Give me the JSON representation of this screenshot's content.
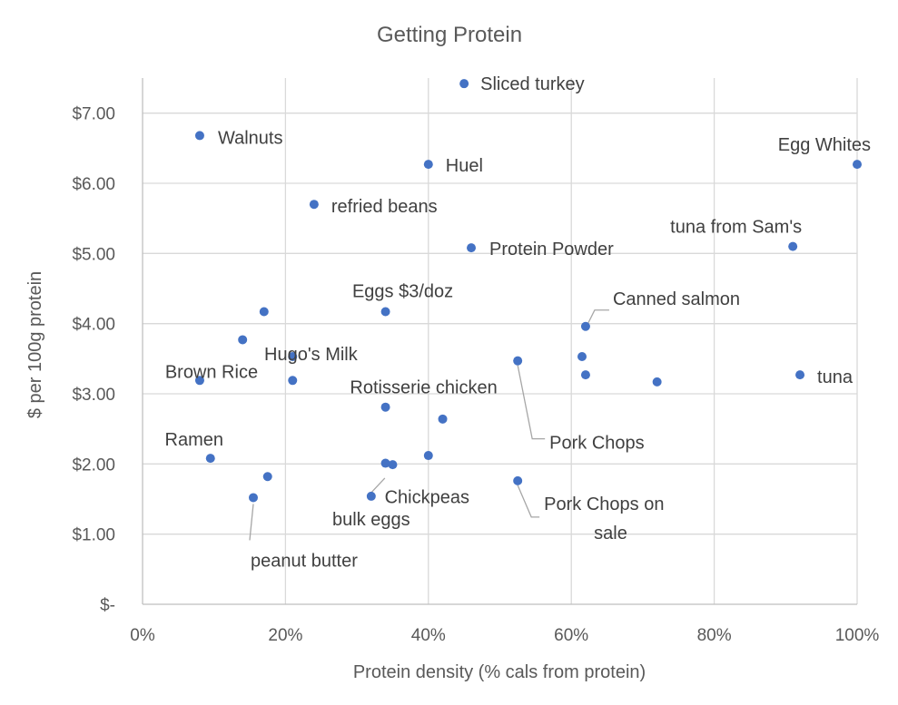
{
  "chart_data": {
    "type": "scatter",
    "title": "Getting Protein",
    "xlabel": "Protein density (% cals from protein)",
    "ylabel": "$ per 100g protein",
    "xlim": [
      0,
      1
    ],
    "ylim": [
      0,
      7.5
    ],
    "x_ticks": [
      {
        "value": 0,
        "label": "0%"
      },
      {
        "value": 0.2,
        "label": "20%"
      },
      {
        "value": 0.4,
        "label": "40%"
      },
      {
        "value": 0.6,
        "label": "60%"
      },
      {
        "value": 0.8,
        "label": "80%"
      },
      {
        "value": 1.0,
        "label": "100%"
      }
    ],
    "y_ticks": [
      {
        "value": 0,
        "label": "$-"
      },
      {
        "value": 1,
        "label": "$1.00"
      },
      {
        "value": 2,
        "label": "$2.00"
      },
      {
        "value": 3,
        "label": "$3.00"
      },
      {
        "value": 4,
        "label": "$4.00"
      },
      {
        "value": 5,
        "label": "$5.00"
      },
      {
        "value": 6,
        "label": "$6.00"
      },
      {
        "value": 7,
        "label": "$7.00"
      }
    ],
    "grid": true,
    "point_color": "#4472c4",
    "points": [
      {
        "x": 0.45,
        "y": 7.42,
        "label": "Sliced turkey"
      },
      {
        "x": 0.08,
        "y": 6.68,
        "label": "Walnuts"
      },
      {
        "x": 0.4,
        "y": 6.27,
        "label": "Huel"
      },
      {
        "x": 1.0,
        "y": 6.27,
        "label": "Egg Whites"
      },
      {
        "x": 0.24,
        "y": 5.7,
        "label": "refried beans"
      },
      {
        "x": 0.46,
        "y": 5.08,
        "label": "Protein Powder"
      },
      {
        "x": 0.91,
        "y": 5.1,
        "label": "tuna from Sam's"
      },
      {
        "x": 0.34,
        "y": 4.17,
        "label": "Eggs $3/doz"
      },
      {
        "x": 0.17,
        "y": 4.17,
        "label": ""
      },
      {
        "x": 0.62,
        "y": 3.96,
        "label": "Canned salmon"
      },
      {
        "x": 0.14,
        "y": 3.77,
        "label": ""
      },
      {
        "x": 0.21,
        "y": 3.53,
        "label": "Hugo's Milk"
      },
      {
        "x": 0.615,
        "y": 3.53,
        "label": ""
      },
      {
        "x": 0.525,
        "y": 3.47,
        "label": "Pork Chops"
      },
      {
        "x": 0.62,
        "y": 3.27,
        "label": ""
      },
      {
        "x": 0.92,
        "y": 3.27,
        "label": "tuna"
      },
      {
        "x": 0.08,
        "y": 3.19,
        "label": "Brown Rice"
      },
      {
        "x": 0.21,
        "y": 3.19,
        "label": ""
      },
      {
        "x": 0.72,
        "y": 3.17,
        "label": ""
      },
      {
        "x": 0.34,
        "y": 2.81,
        "label": "Rotisserie chicken"
      },
      {
        "x": 0.42,
        "y": 2.64,
        "label": ""
      },
      {
        "x": 0.095,
        "y": 2.08,
        "label": "Ramen"
      },
      {
        "x": 0.4,
        "y": 2.12,
        "label": ""
      },
      {
        "x": 0.34,
        "y": 2.01,
        "label": "Chickpeas"
      },
      {
        "x": 0.35,
        "y": 1.99,
        "label": ""
      },
      {
        "x": 0.175,
        "y": 1.82,
        "label": ""
      },
      {
        "x": 0.525,
        "y": 1.76,
        "label": "Pork Chops on sale"
      },
      {
        "x": 0.32,
        "y": 1.54,
        "label": "bulk eggs"
      },
      {
        "x": 0.155,
        "y": 1.52,
        "label": "peanut butter"
      }
    ]
  }
}
